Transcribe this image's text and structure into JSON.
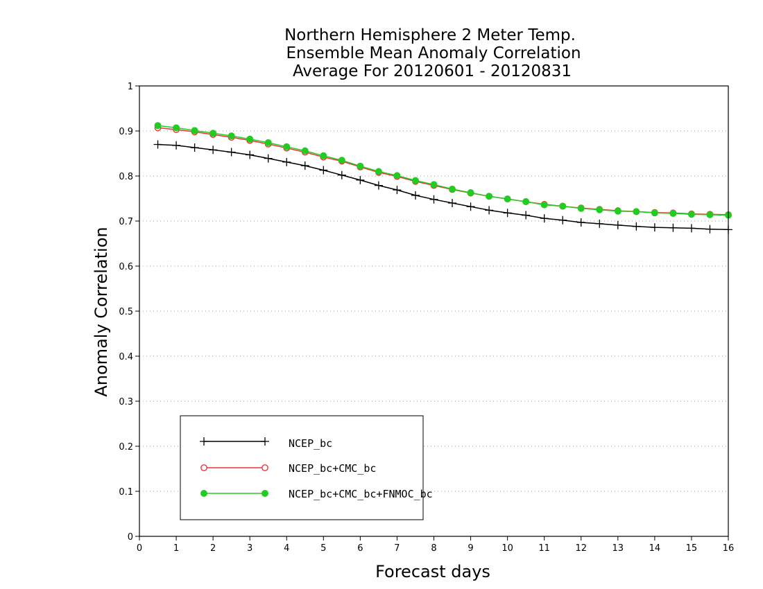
{
  "chart_data": {
    "type": "line",
    "title": [
      "Northern Hemisphere 2 Meter Temp.",
      "Ensemble Mean Anomaly Correlation",
      "Average For 20120601 - 20120831"
    ],
    "xlabel": "Forecast days",
    "ylabel": "Anomaly Correlation",
    "xlim": [
      0,
      16
    ],
    "ylim": [
      0,
      1
    ],
    "xticks": [
      "0",
      "1",
      "2",
      "3",
      "4",
      "5",
      "6",
      "7",
      "8",
      "9",
      "10",
      "11",
      "12",
      "13",
      "14",
      "15",
      "16"
    ],
    "yticks": [
      "0",
      "0.1",
      "0.2",
      "0.3",
      "0.4",
      "0.5",
      "0.6",
      "0.7",
      "0.8",
      "0.9",
      "1"
    ],
    "grid": "horizontal dotted",
    "legend_position": "bottom-left",
    "x": [
      0.5,
      1,
      1.5,
      2,
      2.5,
      3,
      3.5,
      4,
      4.5,
      5,
      5.5,
      6,
      6.5,
      7,
      7.5,
      8,
      8.5,
      9,
      9.5,
      10,
      10.5,
      11,
      11.5,
      12,
      12.5,
      13,
      13.5,
      14,
      14.5,
      15,
      15.5,
      16
    ],
    "series": [
      {
        "name": "NCEP_bc",
        "color": "#000000",
        "marker": "plus",
        "values": [
          0.87,
          0.868,
          0.863,
          0.858,
          0.853,
          0.847,
          0.839,
          0.831,
          0.823,
          0.813,
          0.802,
          0.791,
          0.779,
          0.769,
          0.757,
          0.748,
          0.74,
          0.732,
          0.724,
          0.718,
          0.713,
          0.706,
          0.702,
          0.697,
          0.694,
          0.691,
          0.688,
          0.686,
          0.685,
          0.684,
          0.682,
          0.681
        ]
      },
      {
        "name": "NCEP_bc+CMC_bc",
        "color": "#ee3333",
        "marker": "open-circle",
        "values": [
          0.907,
          0.903,
          0.898,
          0.892,
          0.886,
          0.879,
          0.871,
          0.862,
          0.853,
          0.842,
          0.833,
          0.82,
          0.808,
          0.799,
          0.788,
          0.779,
          0.77,
          0.762,
          0.755,
          0.749,
          0.743,
          0.737,
          0.733,
          0.729,
          0.726,
          0.723,
          0.721,
          0.719,
          0.718,
          0.716,
          0.715,
          0.714
        ]
      },
      {
        "name": "NCEP_bc+CMC_bc+FNMOC_bc",
        "color": "#22cc22",
        "marker": "filled-circle",
        "values": [
          0.912,
          0.907,
          0.901,
          0.895,
          0.889,
          0.882,
          0.874,
          0.865,
          0.856,
          0.845,
          0.835,
          0.822,
          0.81,
          0.801,
          0.79,
          0.781,
          0.771,
          0.763,
          0.755,
          0.749,
          0.743,
          0.736,
          0.733,
          0.728,
          0.725,
          0.722,
          0.721,
          0.718,
          0.717,
          0.715,
          0.714,
          0.713
        ]
      }
    ]
  }
}
